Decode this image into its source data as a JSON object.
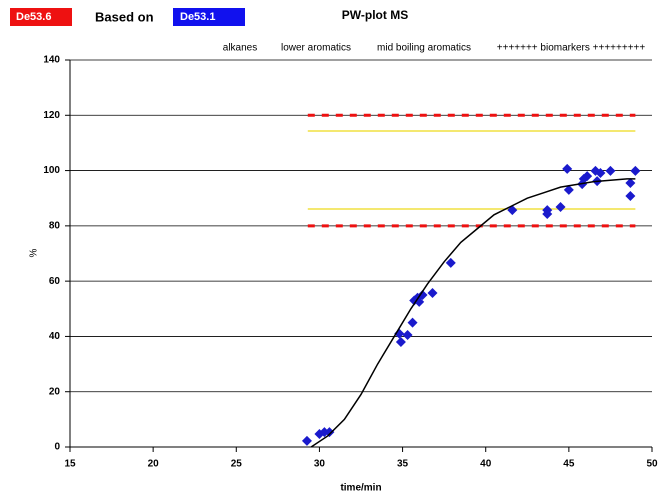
{
  "chart_data": {
    "type": "scatter",
    "title": "PW-plot MS",
    "header": {
      "sample": "De53.6",
      "sample_color": "#ee1111",
      "based_on": "Based on",
      "reference": "De53.1",
      "reference_color": "#1111ee"
    },
    "annotations": [
      "alkanes",
      "lower aromatics",
      "mid boiling aromatics",
      "+++++++ biomarkers +++++++++"
    ],
    "x_label": "time/min",
    "y_label": "%",
    "xlim": [
      15,
      50
    ],
    "ylim": [
      0,
      140
    ],
    "xticks": [
      15,
      20,
      25,
      30,
      35,
      40,
      45,
      50
    ],
    "yticks": [
      0,
      20,
      40,
      60,
      80,
      100,
      120,
      140
    ],
    "grid": true,
    "series": [
      {
        "style": "markers",
        "color": "#1a1acc",
        "x": [
          29.25,
          30.0,
          30.3,
          30.6,
          34.8,
          34.9,
          35.3,
          35.6,
          35.7,
          35.9,
          36.2,
          36.0,
          36.8,
          37.9,
          41.6,
          43.7,
          43.7,
          44.5,
          44.9,
          45.0,
          45.8,
          45.9,
          46.1,
          46.6,
          46.7,
          46.9,
          47.5,
          48.7,
          48.7,
          49.0
        ],
        "values": [
          2.2,
          4.7,
          5.4,
          5.4,
          41,
          38,
          40.5,
          45,
          53,
          54,
          55,
          52.5,
          55.7,
          66.6,
          85.7,
          85.7,
          84.3,
          86.8,
          100.6,
          93,
          95.1,
          97,
          98,
          99.9,
          96.2,
          99.1,
          99.9,
          95.5,
          90.8,
          99.9
        ]
      },
      {
        "style": "line",
        "color": "#000000",
        "x": [
          29.5,
          30.5,
          31.5,
          32.5,
          33.5,
          34.5,
          35.5,
          36.5,
          37.5,
          38.5,
          39.5,
          40.5,
          41.5,
          42.5,
          43.5,
          44.5,
          45.5,
          46.5,
          47.5,
          48.5,
          49.0
        ],
        "values": [
          0,
          4,
          10,
          19,
          30,
          40,
          50,
          59,
          67,
          74,
          79,
          84,
          87,
          90,
          92,
          94,
          95,
          96,
          96.5,
          97,
          97
        ]
      }
    ],
    "reference_lines": [
      {
        "value": 120,
        "x": [
          29.3,
          49.0
        ],
        "color": "#ee1111",
        "dashed": true
      },
      {
        "value": 80,
        "x": [
          29.3,
          49.0
        ],
        "color": "#ee1111",
        "dashed": true
      },
      {
        "value": 114.3,
        "x": [
          29.3,
          49.0
        ],
        "color": "#f0e040",
        "dashed": false
      },
      {
        "value": 86.1,
        "x": [
          29.3,
          49.0
        ],
        "color": "#f0e040",
        "dashed": false
      }
    ]
  }
}
